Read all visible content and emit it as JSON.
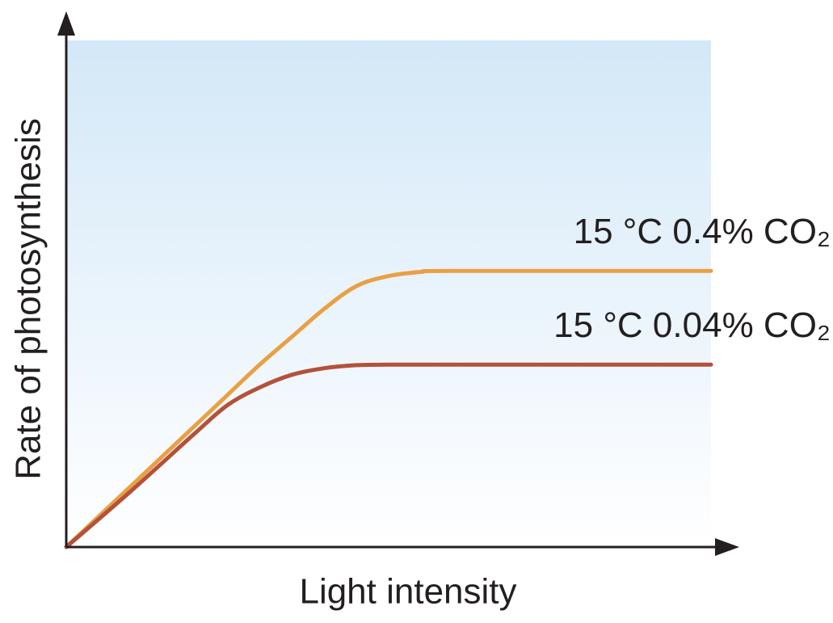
{
  "chart_data": {
    "type": "line",
    "xlabel": "Light intensity",
    "ylabel": "Rate of photosynthesis",
    "x": [
      0,
      10,
      20,
      25,
      30,
      35,
      40,
      45,
      50,
      55,
      60,
      100
    ],
    "xlim": [
      0,
      100
    ],
    "ylim": [
      0,
      100
    ],
    "series": [
      {
        "name": "15 °C 0.4% CO₂",
        "color": "#e9a043",
        "values": [
          0,
          12,
          24,
          30,
          36,
          41.5,
          47,
          51.5,
          53.5,
          54.3,
          54.5,
          54.5
        ]
      },
      {
        "name": "15 °C 0.04% CO₂",
        "color": "#b4513a",
        "values": [
          0,
          11,
          22.5,
          28,
          31.5,
          34,
          35.3,
          35.9,
          36,
          36,
          36,
          36
        ]
      }
    ]
  }
}
